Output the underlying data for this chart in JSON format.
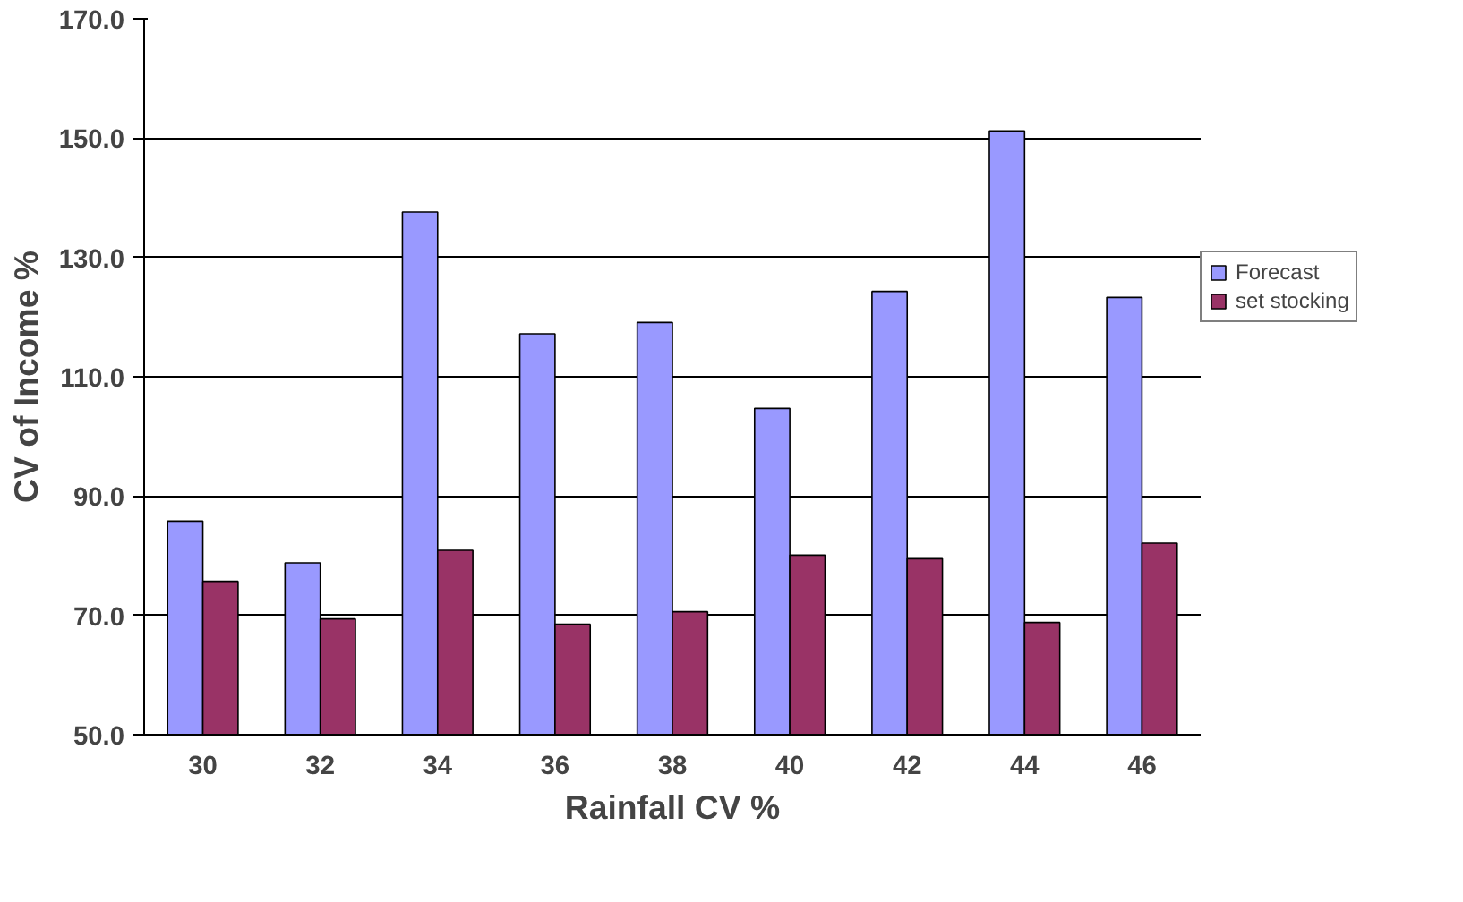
{
  "chart_data": {
    "type": "bar",
    "xlabel": "Rainfall CV %",
    "ylabel": "CV of Income %",
    "categories": [
      "30",
      "32",
      "34",
      "36",
      "38",
      "40",
      "42",
      "44",
      "46"
    ],
    "series": [
      {
        "name": "Forecast",
        "color": "#9999ff",
        "values": [
          85.8,
          78.8,
          137.6,
          117.2,
          119.1,
          104.7,
          124.3,
          151.2,
          123.3
        ]
      },
      {
        "name": "set stocking",
        "color": "#993366",
        "values": [
          75.7,
          69.4,
          80.9,
          68.5,
          70.6,
          80.1,
          79.5,
          68.8,
          82.1
        ]
      }
    ],
    "ylim": [
      50,
      170
    ],
    "yticks": [
      {
        "value": 50,
        "label": "50.0"
      },
      {
        "value": 70,
        "label": "70.0"
      },
      {
        "value": 90,
        "label": "90.0"
      },
      {
        "value": 110,
        "label": "110.0"
      },
      {
        "value": 130,
        "label": "130.0"
      },
      {
        "value": 150,
        "label": "150.0"
      },
      {
        "value": 170,
        "label": "170.0"
      }
    ],
    "grid": "y",
    "legend": "right"
  }
}
